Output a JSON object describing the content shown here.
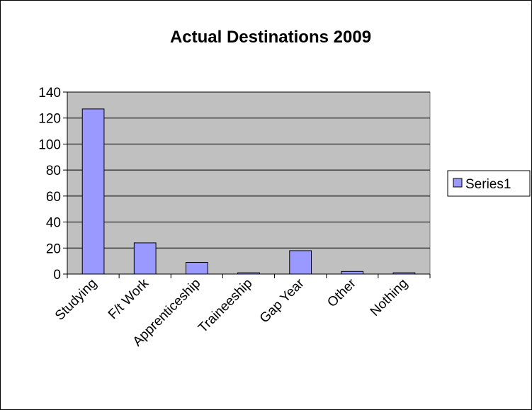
{
  "chart_data": {
    "type": "bar",
    "title": "Actual Destinations 2009",
    "xlabel": "",
    "ylabel": "",
    "categories": [
      "Studying",
      "F/t Work",
      "Apprenticeship",
      "Traineeship",
      "Gap Year",
      "Other",
      "Nothing"
    ],
    "series": [
      {
        "name": "Series1",
        "values": [
          127,
          24,
          9,
          1,
          18,
          2,
          1
        ]
      }
    ],
    "ylim": [
      0,
      140
    ],
    "yticks": [
      "0",
      "20",
      "40",
      "60",
      "80",
      "100",
      "120",
      "140"
    ],
    "grid": true,
    "legend_position": "right",
    "colors": {
      "bar_fill": "#9999ff",
      "plot_background": "#c0c0c0",
      "gridline": "#000000"
    }
  }
}
